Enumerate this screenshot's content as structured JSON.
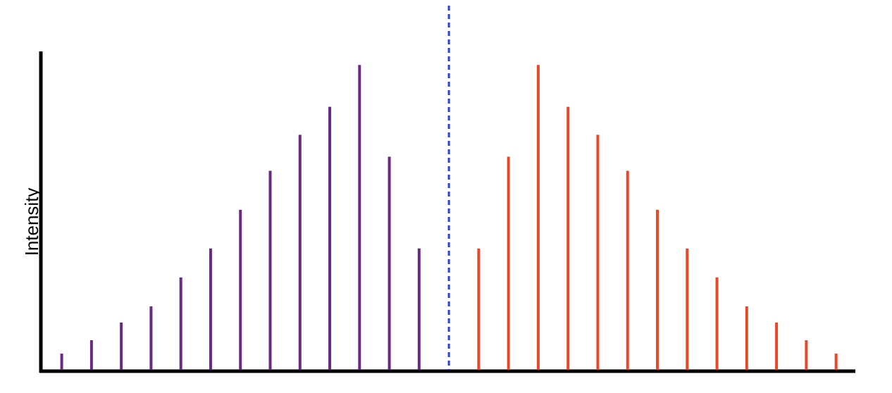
{
  "chart_data": {
    "type": "stick",
    "y_label": "Intensity",
    "xlim": [
      -0.7,
      26.6
    ],
    "ylim": [
      0,
      104
    ],
    "vline": 13,
    "vline_color": "#2a3fe0",
    "series": [
      {
        "color": "#6a2a82",
        "x": [
          0,
          1,
          2,
          3,
          4,
          5,
          6,
          7,
          8,
          9,
          10,
          11,
          12
        ],
        "values": [
          5.3,
          9.7,
          15.5,
          20.8,
          30.3,
          39.8,
          52.5,
          65.3,
          77.1,
          86.3,
          100,
          69.9,
          39.8
        ]
      },
      {
        "color": "#e8482a",
        "x": [
          14,
          15,
          16,
          17,
          18,
          19,
          20,
          21,
          22,
          23,
          24,
          25,
          26
        ],
        "values": [
          39.8,
          69.9,
          100,
          86.3,
          77.1,
          65.3,
          52.5,
          39.8,
          30.3,
          20.8,
          15.5,
          9.7,
          5.3
        ]
      }
    ]
  }
}
